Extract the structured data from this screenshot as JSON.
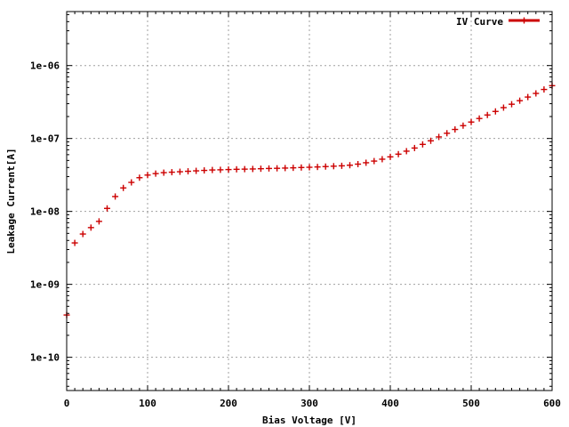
{
  "chart_data": {
    "type": "scatter",
    "xlabel": "Bias Voltage [V]",
    "ylabel": "Leakage Current[A]",
    "xlim": [
      0,
      600
    ],
    "ylim": [
      3.5e-11,
      5.5e-06
    ],
    "yscale": "log",
    "grid": true,
    "legend_position": "top-right",
    "x_ticks": [
      0,
      100,
      200,
      300,
      400,
      500,
      600
    ],
    "x_tick_labels": [
      "0",
      "100",
      "200",
      "300",
      "400",
      "500",
      "600"
    ],
    "y_ticks": [
      1e-10,
      1e-09,
      1e-08,
      1e-07,
      1e-06
    ],
    "y_tick_labels": [
      "1e-10",
      "1e-09",
      "1e-08",
      "1e-07",
      "1e-06"
    ],
    "series": [
      {
        "name": "IV Curve",
        "color": "#cc0000",
        "marker": "plus",
        "x": [
          0,
          10,
          20,
          30,
          40,
          50,
          60,
          70,
          80,
          90,
          100,
          110,
          120,
          130,
          140,
          150,
          160,
          170,
          180,
          190,
          200,
          210,
          220,
          230,
          240,
          250,
          260,
          270,
          280,
          290,
          300,
          310,
          320,
          330,
          340,
          350,
          360,
          370,
          380,
          390,
          400,
          410,
          420,
          430,
          440,
          450,
          460,
          470,
          480,
          490,
          500,
          510,
          520,
          530,
          540,
          550,
          560,
          570,
          580,
          590,
          600
        ],
        "y": [
          3.8e-10,
          3.7e-09,
          4.9e-09,
          6e-09,
          7.3e-09,
          1.1e-08,
          1.6e-08,
          2.1e-08,
          2.5e-08,
          2.9e-08,
          3.15e-08,
          3.3e-08,
          3.4e-08,
          3.45e-08,
          3.5e-08,
          3.55e-08,
          3.6e-08,
          3.65e-08,
          3.7e-08,
          3.72e-08,
          3.75e-08,
          3.78e-08,
          3.8e-08,
          3.82e-08,
          3.85e-08,
          3.88e-08,
          3.9e-08,
          3.93e-08,
          3.96e-08,
          4e-08,
          4.03e-08,
          4.07e-08,
          4.12e-08,
          4.17e-08,
          4.22e-08,
          4.3e-08,
          4.45e-08,
          4.65e-08,
          4.9e-08,
          5.2e-08,
          5.6e-08,
          6.1e-08,
          6.7e-08,
          7.4e-08,
          8.3e-08,
          9.3e-08,
          1.05e-07,
          1.18e-07,
          1.33e-07,
          1.5e-07,
          1.68e-07,
          1.88e-07,
          2.1e-07,
          2.35e-07,
          2.65e-07,
          2.95e-07,
          3.3e-07,
          3.7e-07,
          4.15e-07,
          4.7e-07,
          5.3e-07
        ]
      }
    ]
  }
}
